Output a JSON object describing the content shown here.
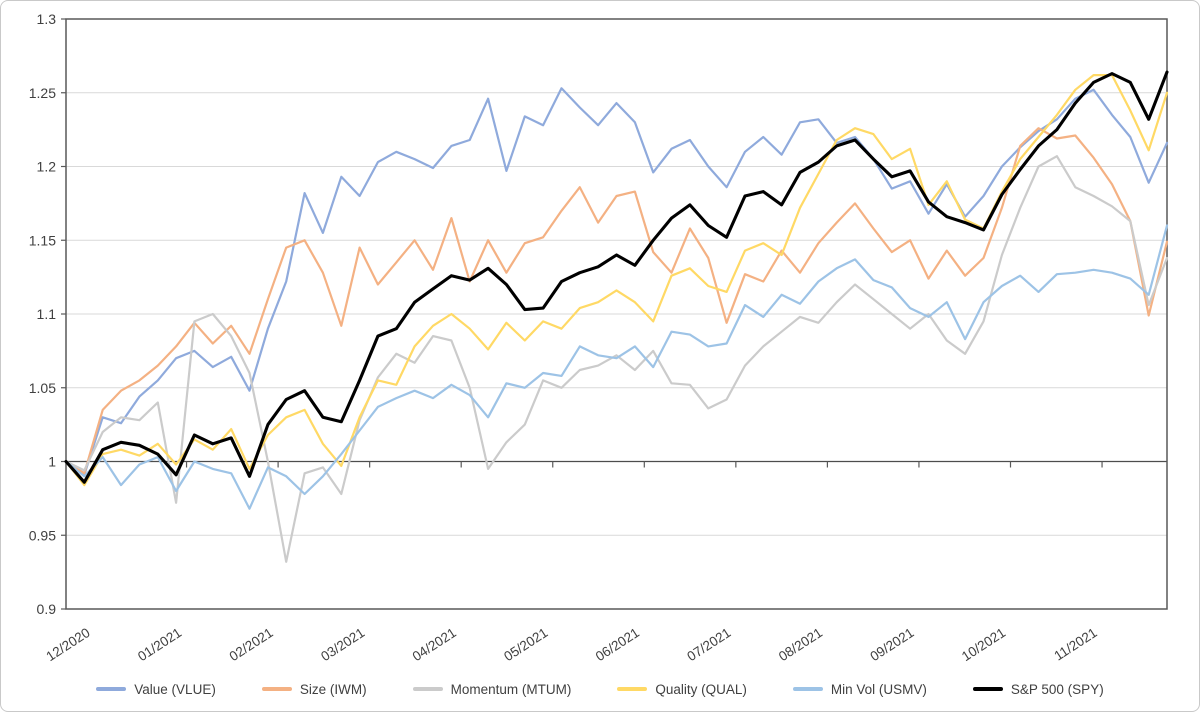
{
  "chart_data": {
    "type": "line",
    "title": "",
    "xlabel": "",
    "ylabel": "",
    "grid": true,
    "legend_position": "bottom",
    "x_axis": {
      "labels": [
        "12/2020",
        "01/2021",
        "02/2021",
        "03/2021",
        "04/2021",
        "05/2021",
        "06/2021",
        "07/2021",
        "08/2021",
        "09/2021",
        "10/2021",
        "11/2021"
      ]
    },
    "y_axis": {
      "min": 0.9,
      "max": 1.3,
      "step": 0.05,
      "labels": [
        "1.3",
        "1.25",
        "1.2",
        "1.15",
        "1.1",
        "1.05",
        "1",
        "0.95",
        "0.9"
      ],
      "baseline_value": 1
    },
    "series": [
      {
        "name": "Value (VLUE)",
        "color": "#8FAADC",
        "width": 2.2,
        "values": [
          1.0,
          0.991,
          1.03,
          1.026,
          1.044,
          1.055,
          1.07,
          1.075,
          1.064,
          1.071,
          1.048,
          1.09,
          1.122,
          1.182,
          1.155,
          1.193,
          1.18,
          1.203,
          1.21,
          1.205,
          1.199,
          1.214,
          1.218,
          1.246,
          1.197,
          1.234,
          1.228,
          1.253,
          1.24,
          1.228,
          1.243,
          1.23,
          1.196,
          1.212,
          1.218,
          1.2,
          1.186,
          1.21,
          1.22,
          1.208,
          1.23,
          1.232,
          1.216,
          1.22,
          1.205,
          1.185,
          1.19,
          1.168,
          1.188,
          1.166,
          1.18,
          1.2,
          1.213,
          1.224,
          1.232,
          1.246,
          1.252,
          1.235,
          1.22,
          1.189,
          1.216
        ]
      },
      {
        "name": "Size (IWM)",
        "color": "#F4B183",
        "width": 2.2,
        "values": [
          1.0,
          0.992,
          1.035,
          1.048,
          1.055,
          1.065,
          1.078,
          1.094,
          1.08,
          1.092,
          1.073,
          1.11,
          1.145,
          1.15,
          1.128,
          1.092,
          1.145,
          1.12,
          1.135,
          1.15,
          1.13,
          1.165,
          1.122,
          1.15,
          1.128,
          1.148,
          1.152,
          1.17,
          1.186,
          1.162,
          1.18,
          1.183,
          1.142,
          1.128,
          1.158,
          1.138,
          1.094,
          1.127,
          1.122,
          1.143,
          1.128,
          1.148,
          1.162,
          1.175,
          1.158,
          1.142,
          1.15,
          1.124,
          1.143,
          1.126,
          1.138,
          1.172,
          1.214,
          1.226,
          1.219,
          1.221,
          1.206,
          1.188,
          1.163,
          1.099,
          1.149
        ]
      },
      {
        "name": "Momentum (MTUM)",
        "color": "#CBCBCB",
        "width": 2.2,
        "values": [
          1.0,
          0.994,
          1.02,
          1.03,
          1.028,
          1.04,
          0.972,
          1.095,
          1.1,
          1.085,
          1.06,
          1.0,
          0.932,
          0.992,
          0.996,
          0.978,
          1.028,
          1.057,
          1.073,
          1.067,
          1.085,
          1.082,
          1.05,
          0.995,
          1.013,
          1.025,
          1.055,
          1.05,
          1.062,
          1.065,
          1.072,
          1.062,
          1.075,
          1.053,
          1.052,
          1.036,
          1.042,
          1.065,
          1.078,
          1.088,
          1.098,
          1.094,
          1.108,
          1.12,
          1.11,
          1.1,
          1.09,
          1.1,
          1.082,
          1.073,
          1.095,
          1.14,
          1.172,
          1.2,
          1.207,
          1.186,
          1.18,
          1.173,
          1.163,
          1.106,
          1.138
        ]
      },
      {
        "name": "Quality (QUAL)",
        "color": "#FFD965",
        "width": 2.2,
        "values": [
          1.0,
          0.984,
          1.005,
          1.008,
          1.004,
          1.012,
          0.998,
          1.015,
          1.008,
          1.022,
          0.995,
          1.018,
          1.03,
          1.035,
          1.012,
          0.997,
          1.03,
          1.055,
          1.052,
          1.078,
          1.092,
          1.1,
          1.09,
          1.076,
          1.094,
          1.082,
          1.095,
          1.09,
          1.104,
          1.108,
          1.116,
          1.108,
          1.095,
          1.126,
          1.131,
          1.119,
          1.115,
          1.143,
          1.148,
          1.14,
          1.172,
          1.195,
          1.218,
          1.226,
          1.222,
          1.205,
          1.212,
          1.174,
          1.19,
          1.164,
          1.158,
          1.183,
          1.205,
          1.22,
          1.235,
          1.252,
          1.262,
          1.262,
          1.238,
          1.211,
          1.25
        ]
      },
      {
        "name": "Min Vol (USMV)",
        "color": "#9DC3E6",
        "width": 2.2,
        "values": [
          1.0,
          0.99,
          1.003,
          0.984,
          0.998,
          1.003,
          0.98,
          1.0,
          0.995,
          0.992,
          0.968,
          0.996,
          0.99,
          0.978,
          0.99,
          1.005,
          1.021,
          1.037,
          1.043,
          1.048,
          1.043,
          1.052,
          1.045,
          1.03,
          1.053,
          1.05,
          1.06,
          1.058,
          1.078,
          1.072,
          1.07,
          1.078,
          1.064,
          1.088,
          1.086,
          1.078,
          1.08,
          1.106,
          1.098,
          1.113,
          1.107,
          1.122,
          1.131,
          1.137,
          1.123,
          1.118,
          1.104,
          1.098,
          1.108,
          1.083,
          1.108,
          1.119,
          1.126,
          1.115,
          1.127,
          1.128,
          1.13,
          1.128,
          1.124,
          1.113,
          1.16
        ]
      },
      {
        "name": "S&P 500 (SPY)",
        "color": "#000000",
        "width": 3.1,
        "values": [
          1.0,
          0.986,
          1.008,
          1.013,
          1.011,
          1.005,
          0.991,
          1.018,
          1.012,
          1.016,
          0.99,
          1.025,
          1.042,
          1.048,
          1.03,
          1.027,
          1.055,
          1.085,
          1.09,
          1.108,
          1.117,
          1.126,
          1.123,
          1.131,
          1.12,
          1.103,
          1.104,
          1.122,
          1.128,
          1.132,
          1.14,
          1.133,
          1.15,
          1.165,
          1.174,
          1.16,
          1.152,
          1.18,
          1.183,
          1.174,
          1.196,
          1.203,
          1.214,
          1.218,
          1.205,
          1.193,
          1.197,
          1.176,
          1.166,
          1.162,
          1.157,
          1.181,
          1.198,
          1.214,
          1.225,
          1.243,
          1.257,
          1.263,
          1.257,
          1.232,
          1.264
        ]
      }
    ],
    "legend_entries": [
      "Value (VLUE)",
      "Size (IWM)",
      "Momentum (MTUM)",
      "Quality (QUAL)",
      "Min Vol (USMV)",
      "S&P 500 (SPY)"
    ]
  },
  "colors": {
    "grid": "#D9D9D9",
    "axis_border": "#595959",
    "baseline": "#4d4d4d",
    "tick": "#595959",
    "label_text": "#404040"
  }
}
